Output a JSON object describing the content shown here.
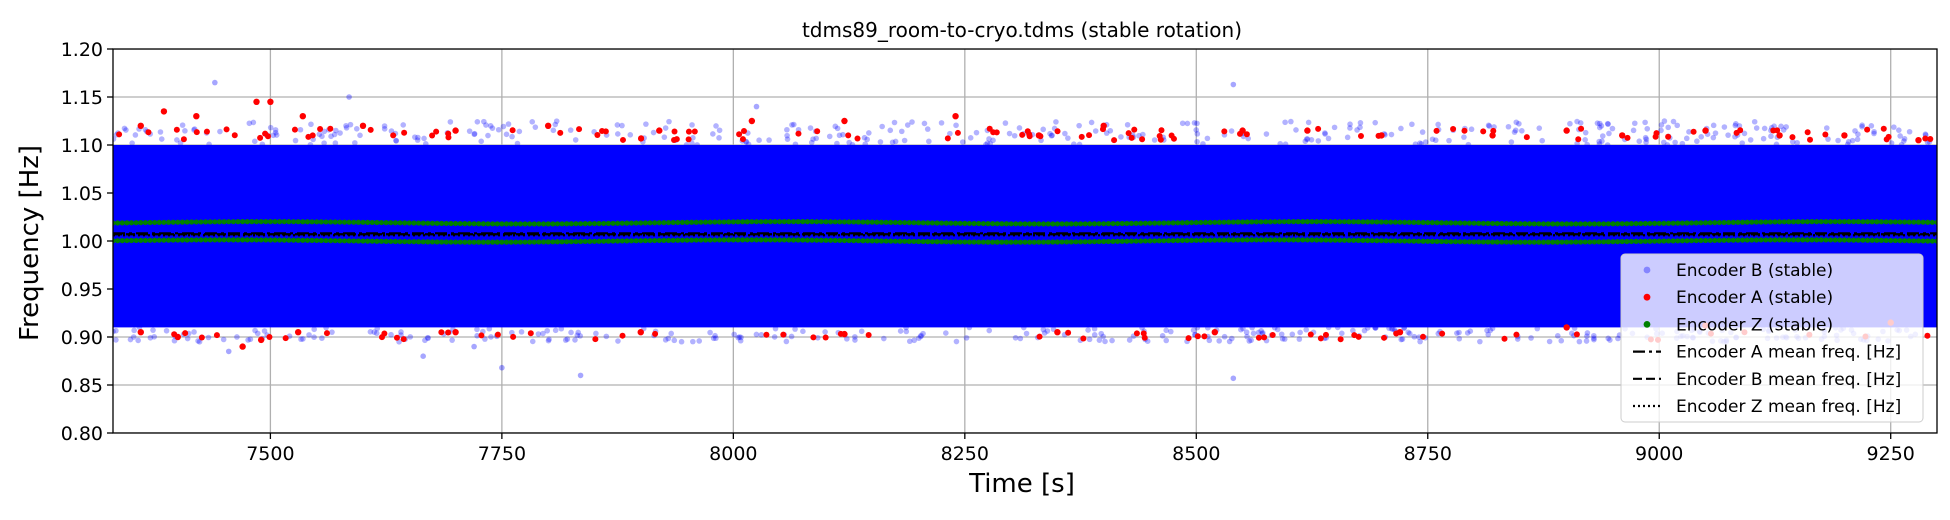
{
  "chart_data": {
    "type": "scatter",
    "title": "tdms89_room-to-cryo.tdms (stable rotation)",
    "xlabel": "Time [s]",
    "ylabel": "Frequency [Hz]",
    "xlim": [
      7330,
      9300
    ],
    "ylim": [
      0.8,
      1.2
    ],
    "xticks": [
      7500,
      7750,
      8000,
      8250,
      8500,
      8750,
      9000,
      9250
    ],
    "yticks": [
      "0.80",
      "0.85",
      "0.90",
      "0.95",
      "1.00",
      "1.05",
      "1.10",
      "1.15",
      "1.20"
    ],
    "grid": true,
    "legend_position": "lower-right",
    "series": [
      {
        "name": "Encoder B (stable)",
        "kind": "scatter",
        "color": "#0000ff",
        "alpha": 0.35,
        "band": [
          0.91,
          1.1
        ],
        "outliers": [
          [
            7440,
            1.165
          ],
          [
            7585,
            1.15
          ],
          [
            7665,
            0.88
          ],
          [
            7750,
            0.868
          ],
          [
            7835,
            0.86
          ],
          [
            8025,
            1.14
          ],
          [
            8540,
            1.163
          ],
          [
            8540,
            0.857
          ],
          [
            7455,
            0.885
          ],
          [
            7720,
            0.89
          ]
        ]
      },
      {
        "name": "Encoder A (stable)",
        "kind": "scatter",
        "color": "#ff0000",
        "band": [
          0.905,
          1.105
        ],
        "edge_points": [
          [
            7360,
            1.12
          ],
          [
            7385,
            1.135
          ],
          [
            7420,
            1.13
          ],
          [
            7485,
            1.145
          ],
          [
            7500,
            1.145
          ],
          [
            7535,
            1.13
          ],
          [
            7600,
            1.12
          ],
          [
            7700,
            1.115
          ],
          [
            7800,
            1.12
          ],
          [
            7920,
            1.115
          ],
          [
            8020,
            1.125
          ],
          [
            8120,
            1.125
          ],
          [
            8240,
            1.13
          ],
          [
            8330,
            1.11
          ],
          [
            8400,
            1.12
          ],
          [
            8550,
            1.115
          ],
          [
            8620,
            1.115
          ],
          [
            8700,
            1.11
          ],
          [
            8820,
            1.11
          ],
          [
            8900,
            1.115
          ],
          [
            8960,
            1.11
          ],
          [
            9050,
            1.115
          ],
          [
            9130,
            1.11
          ],
          [
            9200,
            1.11
          ],
          [
            9280,
            1.105
          ],
          [
            7360,
            0.905
          ],
          [
            7400,
            0.9
          ],
          [
            7470,
            0.89
          ],
          [
            7490,
            0.897
          ],
          [
            7530,
            0.905
          ],
          [
            7700,
            0.905
          ],
          [
            7900,
            0.905
          ],
          [
            8120,
            0.903
          ],
          [
            8350,
            0.905
          ],
          [
            8520,
            0.905
          ],
          [
            8720,
            0.905
          ],
          [
            8900,
            0.91
          ],
          [
            9050,
            0.912
          ],
          [
            9250,
            0.915
          ]
        ]
      },
      {
        "name": "Encoder Z (stable)",
        "kind": "scatter",
        "color": "#008000",
        "levels": [
          1.019,
          1.0
        ]
      },
      {
        "name": "Encoder A mean freq. [Hz]",
        "kind": "line",
        "style": "dashdot",
        "color": "#000000",
        "value": 1.008
      },
      {
        "name": "Encoder B mean freq. [Hz]",
        "kind": "line",
        "style": "dashed",
        "color": "#000000",
        "value": 1.007
      },
      {
        "name": "Encoder Z mean freq. [Hz]",
        "kind": "line",
        "style": "dotted",
        "color": "#000000",
        "value": 1.006
      }
    ]
  }
}
